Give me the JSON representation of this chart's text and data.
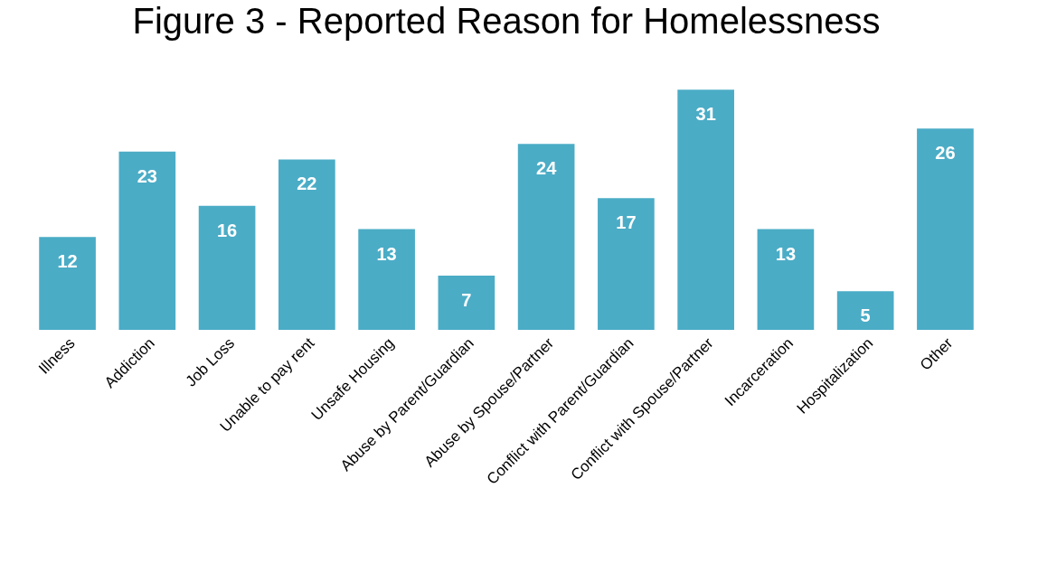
{
  "chart_data": {
    "type": "bar",
    "title": "Figure 3 - Reported Reason for Homelessness",
    "categories": [
      "Illness",
      "Addiction",
      "Job Loss",
      "Unable to pay rent",
      "Unsafe Housing",
      "Abuse by Parent/Guardian",
      "Abuse by Spouse/Partner",
      "Conflict with Parent/Guardian",
      "Conflict with Spouse/Partner",
      "Incarceration",
      "Hospitalization",
      "Other"
    ],
    "values": [
      12,
      23,
      16,
      22,
      13,
      7,
      24,
      17,
      31,
      13,
      5,
      26
    ],
    "color": "#4bacc6",
    "data_labels": true
  }
}
